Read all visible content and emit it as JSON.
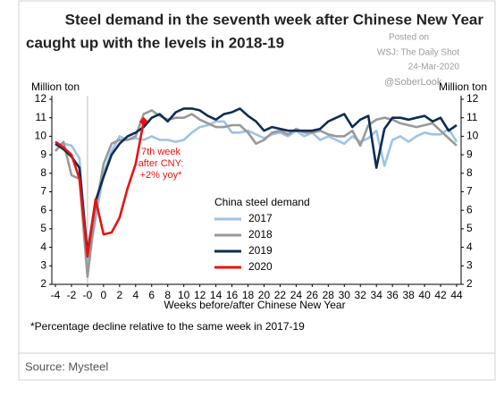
{
  "chart_data": {
    "type": "line",
    "title": [
      "Steel demand in the seventh week after Chinese New Year",
      "caught up with the levels in 2018-19"
    ],
    "watermark": [
      "Posted on",
      "WSJ: The Daily Shot",
      "24-Mar-2020",
      "@SoberLook"
    ],
    "y_label": "Million ton",
    "y2_label": "Million ton",
    "x_label": "Weeks before/after Chinese New Year",
    "legend_title": "China steel demand",
    "annotation": [
      "7th week",
      "after CNY:",
      "+2% yoy*"
    ],
    "footnote": "*Percentage decline relative to the same week in 2017-19",
    "source": "Source: Mysteel",
    "categories": [
      "-4",
      null,
      "-2",
      null,
      "-0",
      null,
      "0",
      null,
      "2",
      null,
      "4",
      null,
      "6",
      null,
      "8",
      null,
      "10",
      null,
      "12",
      null,
      "14",
      null,
      "16",
      null,
      "18",
      null,
      "20",
      null,
      "22",
      null,
      "24",
      null,
      "26",
      null,
      "28",
      null,
      "30",
      null,
      "32",
      null,
      "34",
      null,
      "36",
      null,
      "38",
      null,
      "40",
      null,
      "42",
      null,
      "44"
    ],
    "ylim": [
      2,
      12
    ],
    "yticks": [
      2,
      3,
      4,
      5,
      6,
      7,
      8,
      9,
      10,
      11,
      12
    ],
    "y2lim": [
      2,
      12
    ],
    "y2ticks": [
      2,
      3,
      4,
      5,
      6,
      7,
      8,
      9,
      10,
      11,
      12
    ],
    "series": [
      {
        "name": "2017",
        "color": "#9dc3e6",
        "values": [
          9.5,
          9.6,
          9.5,
          8.8,
          3.0,
          5.5,
          8.0,
          9.2,
          10.0,
          9.8,
          9.9,
          9.8,
          10.0,
          9.8,
          9.8,
          9.7,
          9.8,
          10.2,
          10.5,
          10.6,
          10.8,
          10.8,
          10.2,
          10.2,
          10.3,
          10.1,
          9.9,
          10.1,
          10.2,
          10.0,
          10.3,
          10.0,
          10.2,
          9.8,
          10.0,
          9.8,
          9.6,
          10.0,
          9.7,
          9.9,
          10.3,
          8.4,
          9.8,
          10.0,
          9.7,
          10.0,
          10.2,
          10.1,
          10.1,
          10.4,
          9.7
        ]
      },
      {
        "name": "2018",
        "color": "#999999",
        "values": [
          9.2,
          9.7,
          7.9,
          7.7,
          2.4,
          6.0,
          8.5,
          9.6,
          9.8,
          9.8,
          10.0,
          11.2,
          11.4,
          11.1,
          10.9,
          11.0,
          11.0,
          11.2,
          10.9,
          10.7,
          10.5,
          10.5,
          10.6,
          10.6,
          10.2,
          9.6,
          9.8,
          10.2,
          10.3,
          10.1,
          10.4,
          10.2,
          10.2,
          10.3,
          10.1,
          10.0,
          10.0,
          10.3,
          9.5,
          10.6,
          10.9,
          11.0,
          10.9,
          10.7,
          10.6,
          10.5,
          10.6,
          10.7,
          10.3,
          9.9,
          9.5
        ]
      },
      {
        "name": "2019",
        "color": "#0d2c54",
        "values": [
          9.6,
          9.3,
          8.9,
          8.3,
          3.7,
          6.5,
          7.8,
          9.0,
          9.6,
          10.0,
          10.2,
          10.5,
          11.0,
          11.2,
          10.8,
          11.3,
          11.5,
          11.5,
          11.4,
          11.1,
          10.9,
          11.2,
          11.3,
          11.5,
          11.1,
          10.8,
          10.3,
          10.5,
          10.4,
          10.3,
          10.3,
          10.3,
          10.3,
          10.4,
          10.8,
          11.0,
          11.2,
          10.5,
          10.9,
          11.1,
          8.3,
          10.4,
          11.0,
          11.0,
          10.9,
          11.0,
          11.1,
          10.8,
          11.0,
          10.3,
          10.6
        ]
      },
      {
        "name": "2020",
        "color": "#e8130f",
        "values": [
          9.7,
          9.4,
          9.0,
          7.7,
          3.5,
          6.6,
          4.7,
          4.8,
          5.6,
          7.2,
          8.5,
          10.8,
          null,
          null,
          null,
          null,
          null,
          null,
          null,
          null,
          null,
          null,
          null,
          null,
          null,
          null,
          null,
          null,
          null,
          null,
          null,
          null,
          null,
          null,
          null,
          null,
          null,
          null,
          null,
          null,
          null,
          null,
          null,
          null,
          null,
          null,
          null,
          null,
          null,
          null,
          null
        ]
      }
    ]
  }
}
